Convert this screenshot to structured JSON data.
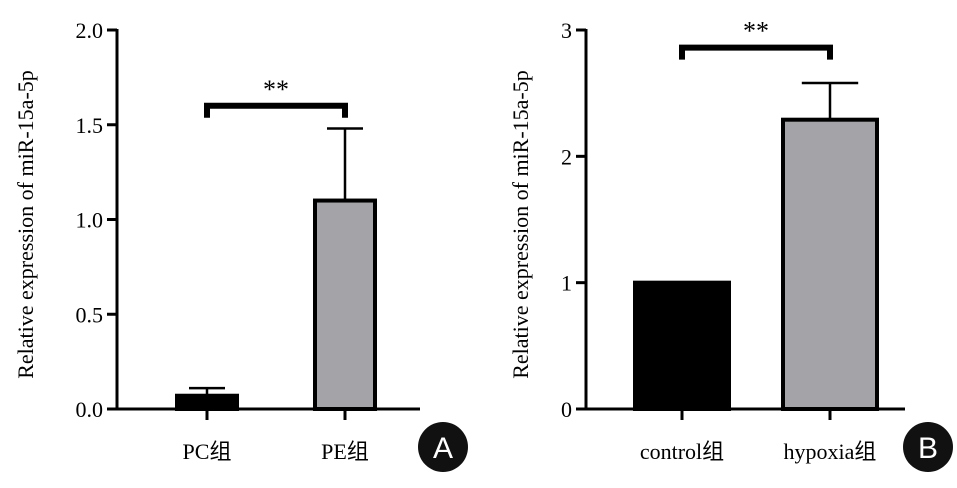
{
  "chart_data": [
    {
      "type": "bar",
      "panel": "A",
      "ylabel": "Relative expression of miR-15a-5p",
      "ylim": [
        0,
        2.0
      ],
      "yticks": [
        0.0,
        0.5,
        1.0,
        1.5,
        2.0
      ],
      "ytick_labels": [
        "0.0",
        "0.5",
        "1.0",
        "1.5",
        "2.0"
      ],
      "categories": [
        "PC组",
        "PE组"
      ],
      "values": [
        0.07,
        1.1
      ],
      "errors": [
        0.04,
        0.38
      ],
      "colors": [
        "#000000",
        "#a3a3a8"
      ],
      "significance": {
        "from": 0,
        "to": 1,
        "label": "**",
        "y": 1.6
      }
    },
    {
      "type": "bar",
      "panel": "B",
      "ylabel": "Relative expression of miR-15a-5p",
      "ylim": [
        0,
        3
      ],
      "yticks": [
        0,
        1,
        2,
        3
      ],
      "ytick_labels": [
        "0",
        "1",
        "2",
        "3"
      ],
      "categories": [
        "control组",
        "hypoxia组"
      ],
      "values": [
        1.0,
        2.29
      ],
      "errors": [
        0,
        0.29
      ],
      "colors": [
        "#000000",
        "#a3a3a8"
      ],
      "significance": {
        "from": 0,
        "to": 1,
        "label": "**",
        "y": 2.86
      }
    }
  ]
}
